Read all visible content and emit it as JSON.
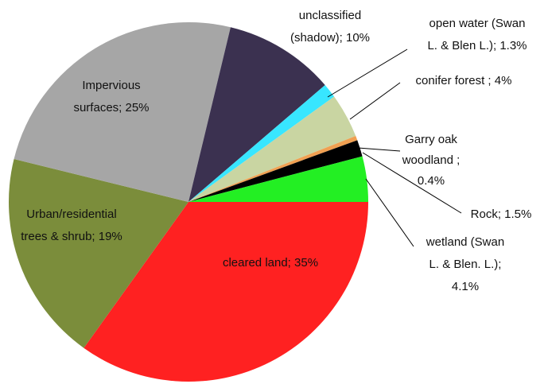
{
  "chart_data": {
    "type": "pie",
    "categories": [
      "cleared land",
      "Urban/residential trees & shrub",
      "Impervious surfaces",
      "unclassified (shadow)",
      "open water (Swan L. & Blen L.)",
      "conifer forest",
      "Garry oak woodland",
      "Rock",
      "wetland (Swan L. & Blen. L.)"
    ],
    "values": [
      35,
      19,
      25,
      10,
      1.3,
      4,
      0.4,
      1.5,
      4.1
    ],
    "value_labels": [
      [
        "cleared land; 35%"
      ],
      [
        "Urban/residential",
        "trees & shrub; 19%"
      ],
      [
        "Impervious",
        "surfaces; 25%"
      ],
      [
        "unclassified",
        "(shadow); 10%"
      ],
      [
        "open water (Swan",
        "L. & Blen L.); 1.3%"
      ],
      [
        "conifer forest ; 4%"
      ],
      [
        "Garry oak",
        "woodland ;",
        "0.4%"
      ],
      [
        "Rock; 1.5%"
      ],
      [
        "wetland (Swan",
        "L. & Blen. L.);",
        "4.1%"
      ]
    ],
    "colors": [
      "#ff2121",
      "#7b8d3b",
      "#a6a6a6",
      "#3b3150",
      "#38e6ff",
      "#c9d5a2",
      "#f0a052",
      "#000000",
      "#23ef23"
    ]
  }
}
